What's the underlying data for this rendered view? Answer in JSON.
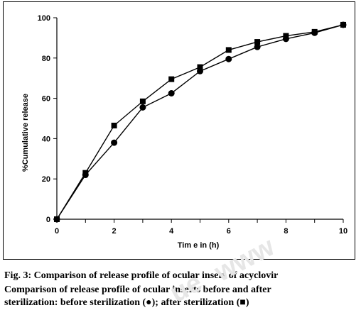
{
  "chart_data": {
    "type": "line",
    "title": "",
    "xlabel": "Tim e in (h)",
    "ylabel": "%Cumulative release",
    "xlim": [
      0,
      10
    ],
    "ylim": [
      0,
      100
    ],
    "xticks": [
      "0",
      "2",
      "4",
      "6",
      "8",
      "10"
    ],
    "yticks": [
      "0",
      "20",
      "40",
      "60",
      "80",
      "100"
    ],
    "grid": false,
    "legend": "none",
    "series": [
      {
        "name": "",
        "marker": "circle",
        "x": [
          0,
          1,
          2,
          3,
          4,
          5,
          6,
          7,
          8,
          9,
          10
        ],
        "values": [
          0,
          22,
          38,
          55.5,
          62.5,
          73.5,
          79.5,
          85.5,
          89.5,
          92.5,
          96.5
        ]
      },
      {
        "name": "",
        "marker": "square",
        "x": [
          0,
          1,
          2,
          3,
          4,
          5,
          6,
          7,
          8,
          9,
          10
        ],
        "values": [
          0,
          23,
          46.5,
          58.5,
          69.5,
          75.5,
          84,
          88,
          91,
          93,
          96.5
        ]
      }
    ]
  },
  "caption": {
    "line1": "Fig. 3: Comparison of release profile of ocular insert of acyclovir",
    "line2": "Comparison of release profile of ocular inserts before and after",
    "line3": "sterilization: before sterilization (●); after sterilization (■)"
  },
  "colors": {
    "line": "#000000",
    "marker": "#000000",
    "axis": "#000000",
    "watermark": "#e6e6e6"
  }
}
